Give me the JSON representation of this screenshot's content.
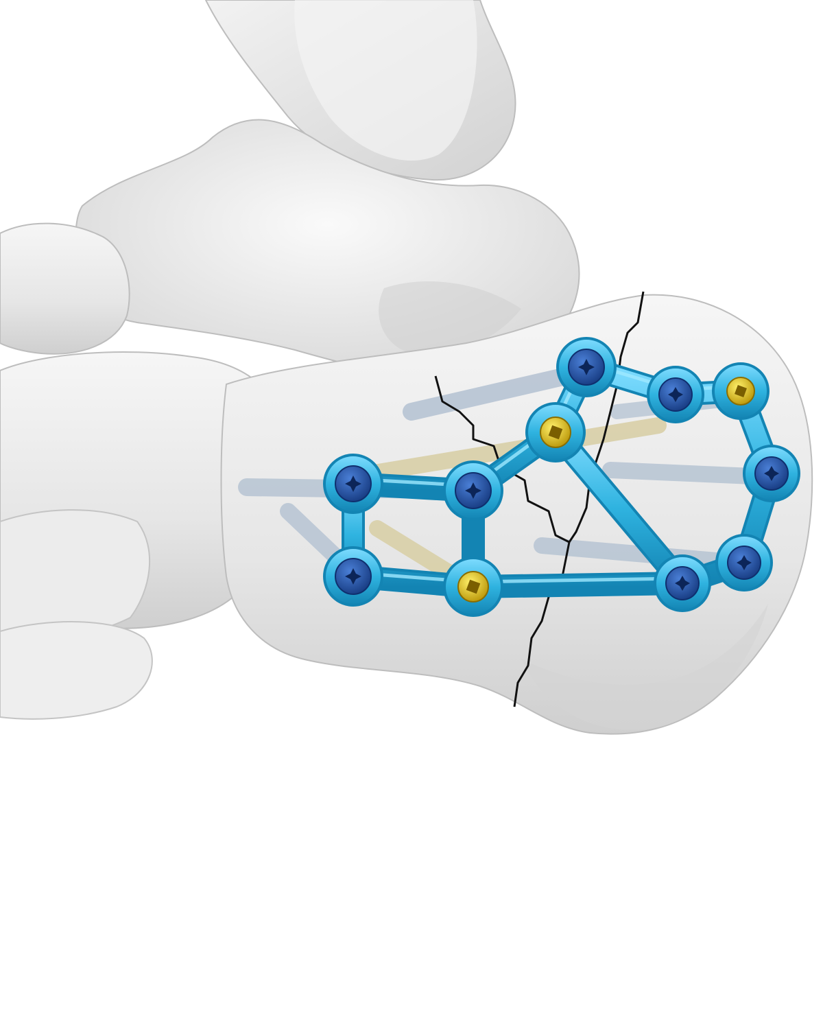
{
  "illustration": {
    "subject": "calcaneus-fracture-plate-fixation",
    "colors": {
      "background": "#ffffff",
      "bone_light": "#f4f4f4",
      "bone_mid": "#dedede",
      "bone_shadow": "#b9b9b9",
      "plate": "#2fb3e0",
      "plate_dark": "#1384b3",
      "plate_highlight": "#8fe3ff",
      "screw_blue": "#1e4fa8",
      "screw_gold": "#e3c21a",
      "screw_shaft_grey": "#aab8c8",
      "screw_shaft_tan": "#d8cfa8",
      "fracture_line": "#111111"
    },
    "screws": [
      {
        "name": "locking-screw",
        "type": "blue"
      },
      {
        "name": "locking-screw",
        "type": "blue"
      },
      {
        "name": "locking-screw",
        "type": "blue"
      },
      {
        "name": "locking-screw",
        "type": "blue"
      },
      {
        "name": "locking-screw",
        "type": "blue"
      },
      {
        "name": "locking-screw",
        "type": "blue"
      },
      {
        "name": "locking-screw",
        "type": "blue"
      },
      {
        "name": "locking-screw",
        "type": "blue"
      },
      {
        "name": "cortical-screw",
        "type": "gold"
      },
      {
        "name": "cortical-screw",
        "type": "gold"
      },
      {
        "name": "cortical-screw",
        "type": "gold"
      }
    ]
  }
}
